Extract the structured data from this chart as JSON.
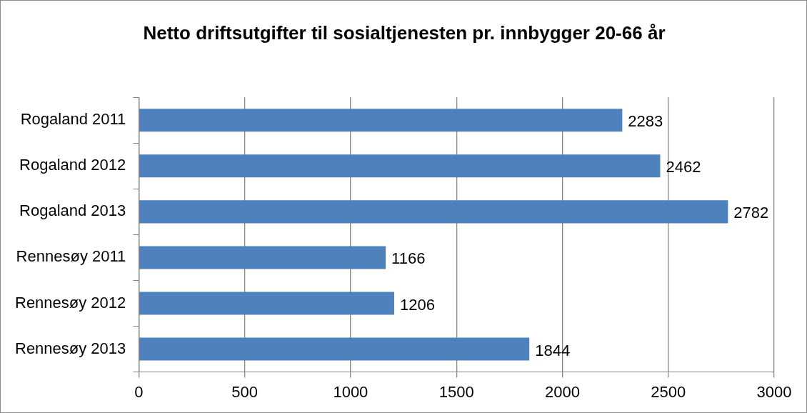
{
  "chart_data": {
    "type": "bar",
    "orientation": "horizontal",
    "title": "Netto driftsutgifter til sosialtjenesten pr. innbygger 20-66 år",
    "categories": [
      "Rogaland 2011",
      "Rogaland 2012",
      "Rogaland 2013",
      "Rennesøy 2011",
      "Rennesøy 2012",
      "Rennesøy 2013"
    ],
    "values": [
      2283,
      2462,
      2782,
      1166,
      1206,
      1844
    ],
    "color": "#4f81bd",
    "xlim": [
      0,
      3000
    ],
    "xticks": [
      0,
      500,
      1000,
      1500,
      2000,
      2500,
      3000
    ],
    "grid": "x",
    "data_labels": true
  }
}
